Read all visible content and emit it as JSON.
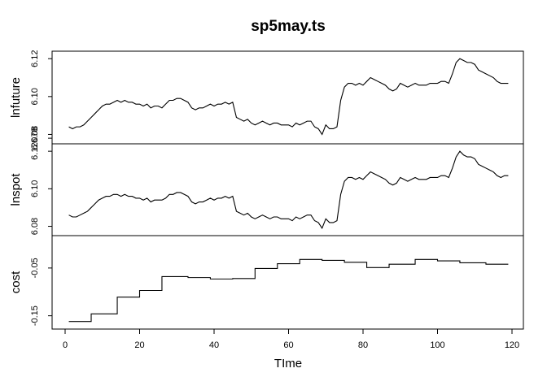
{
  "chart_data": {
    "type": "line",
    "title": "sp5may.ts",
    "xlabel": "TIme",
    "x_range": [
      1,
      119
    ],
    "xlim": [
      0,
      120
    ],
    "x_ticks": [
      0,
      20,
      40,
      60,
      80,
      100,
      120
    ],
    "panels": [
      {
        "name": "lnfuture",
        "ylabel": "lnfuture",
        "ylim": [
          6.077,
          6.122
        ],
        "y_ticks": [
          6.078,
          6.08,
          6.1,
          6.12
        ],
        "y_tick_labels": [
          "6.078",
          "6.08",
          "6.10",
          "6.12"
        ],
        "step": false,
        "x": [
          1,
          2,
          3,
          4,
          5,
          6,
          7,
          8,
          9,
          10,
          11,
          12,
          13,
          14,
          15,
          16,
          17,
          18,
          19,
          20,
          21,
          22,
          23,
          24,
          25,
          26,
          27,
          28,
          29,
          30,
          31,
          32,
          33,
          34,
          35,
          36,
          37,
          38,
          39,
          40,
          41,
          42,
          43,
          44,
          45,
          46,
          47,
          48,
          49,
          50,
          51,
          52,
          53,
          54,
          55,
          56,
          57,
          58,
          59,
          60,
          61,
          62,
          63,
          64,
          65,
          66,
          67,
          68,
          69,
          70,
          71,
          72,
          73,
          74,
          75,
          76,
          77,
          78,
          79,
          80,
          81,
          82,
          83,
          84,
          85,
          86,
          87,
          88,
          89,
          90,
          91,
          92,
          93,
          94,
          95,
          96,
          97,
          98,
          99,
          100,
          101,
          102,
          103,
          104,
          105,
          106,
          107,
          108,
          109,
          110,
          111,
          112,
          113,
          114,
          115,
          116,
          117,
          118,
          119
        ],
        "values": [
          6.084,
          6.083,
          6.084,
          6.084,
          6.085,
          6.087,
          6.089,
          6.091,
          6.093,
          6.095,
          6.096,
          6.096,
          6.097,
          6.098,
          6.097,
          6.098,
          6.097,
          6.097,
          6.096,
          6.096,
          6.095,
          6.096,
          6.094,
          6.095,
          6.095,
          6.094,
          6.096,
          6.098,
          6.098,
          6.099,
          6.099,
          6.098,
          6.097,
          6.094,
          6.093,
          6.094,
          6.094,
          6.095,
          6.096,
          6.095,
          6.096,
          6.096,
          6.097,
          6.096,
          6.097,
          6.089,
          6.088,
          6.087,
          6.088,
          6.086,
          6.085,
          6.086,
          6.087,
          6.086,
          6.085,
          6.086,
          6.086,
          6.085,
          6.085,
          6.085,
          6.084,
          6.086,
          6.085,
          6.086,
          6.087,
          6.087,
          6.084,
          6.083,
          6.08,
          6.085,
          6.083,
          6.083,
          6.084,
          6.098,
          6.105,
          6.107,
          6.107,
          6.106,
          6.107,
          6.106,
          6.108,
          6.11,
          6.109,
          6.108,
          6.107,
          6.106,
          6.104,
          6.103,
          6.104,
          6.107,
          6.106,
          6.105,
          6.106,
          6.107,
          6.106,
          6.106,
          6.106,
          6.107,
          6.107,
          6.107,
          6.108,
          6.108,
          6.107,
          6.112,
          6.118,
          6.12,
          6.119,
          6.118,
          6.118,
          6.117,
          6.114,
          6.113,
          6.112,
          6.111,
          6.11,
          6.108,
          6.107,
          6.107,
          6.107
        ]
      },
      {
        "name": "lnspot",
        "ylabel": "lnspot",
        "ylim": [
          6.077,
          6.122
        ],
        "y_ticks": [
          6.08,
          6.1,
          6.12
        ],
        "y_tick_labels": [
          "6.08",
          "6.10",
          "6.12"
        ],
        "step": false,
        "x": [
          1,
          2,
          3,
          4,
          5,
          6,
          7,
          8,
          9,
          10,
          11,
          12,
          13,
          14,
          15,
          16,
          17,
          18,
          19,
          20,
          21,
          22,
          23,
          24,
          25,
          26,
          27,
          28,
          29,
          30,
          31,
          32,
          33,
          34,
          35,
          36,
          37,
          38,
          39,
          40,
          41,
          42,
          43,
          44,
          45,
          46,
          47,
          48,
          49,
          50,
          51,
          52,
          53,
          54,
          55,
          56,
          57,
          58,
          59,
          60,
          61,
          62,
          63,
          64,
          65,
          66,
          67,
          68,
          69,
          70,
          71,
          72,
          73,
          74,
          75,
          76,
          77,
          78,
          79,
          80,
          81,
          82,
          83,
          84,
          85,
          86,
          87,
          88,
          89,
          90,
          91,
          92,
          93,
          94,
          95,
          96,
          97,
          98,
          99,
          100,
          101,
          102,
          103,
          104,
          105,
          106,
          107,
          108,
          109,
          110,
          111,
          112,
          113,
          114,
          115,
          116,
          117,
          118,
          119
        ],
        "values": [
          6.086,
          6.085,
          6.085,
          6.086,
          6.087,
          6.088,
          6.09,
          6.092,
          6.094,
          6.095,
          6.096,
          6.096,
          6.097,
          6.097,
          6.096,
          6.097,
          6.096,
          6.096,
          6.095,
          6.095,
          6.094,
          6.095,
          6.093,
          6.094,
          6.094,
          6.094,
          6.095,
          6.097,
          6.097,
          6.098,
          6.098,
          6.097,
          6.096,
          6.093,
          6.092,
          6.093,
          6.093,
          6.094,
          6.095,
          6.094,
          6.095,
          6.095,
          6.096,
          6.095,
          6.096,
          6.088,
          6.087,
          6.086,
          6.087,
          6.085,
          6.084,
          6.085,
          6.086,
          6.085,
          6.084,
          6.085,
          6.085,
          6.084,
          6.084,
          6.084,
          6.083,
          6.085,
          6.084,
          6.085,
          6.086,
          6.086,
          6.083,
          6.082,
          6.079,
          6.084,
          6.082,
          6.082,
          6.083,
          6.097,
          6.104,
          6.106,
          6.106,
          6.105,
          6.106,
          6.105,
          6.107,
          6.109,
          6.108,
          6.107,
          6.106,
          6.105,
          6.103,
          6.102,
          6.103,
          6.106,
          6.105,
          6.104,
          6.105,
          6.106,
          6.105,
          6.105,
          6.105,
          6.106,
          6.106,
          6.106,
          6.107,
          6.107,
          6.106,
          6.111,
          6.117,
          6.12,
          6.118,
          6.117,
          6.117,
          6.116,
          6.113,
          6.112,
          6.111,
          6.11,
          6.109,
          6.107,
          6.106,
          6.107,
          6.107
        ]
      },
      {
        "name": "cost",
        "ylabel": "cost",
        "ylim": [
          -0.17,
          0.01
        ],
        "y_ticks": [
          -0.15,
          -0.05
        ],
        "y_tick_labels": [
          "-0.15",
          "-0.05"
        ],
        "step": true,
        "x": [
          1,
          7,
          14,
          20,
          26,
          33,
          39,
          45,
          51,
          57,
          63,
          69,
          75,
          81,
          87,
          94,
          100,
          106,
          113,
          119
        ],
        "values": [
          -0.162,
          -0.146,
          -0.111,
          -0.097,
          -0.068,
          -0.07,
          -0.073,
          -0.072,
          -0.051,
          -0.041,
          -0.032,
          -0.034,
          -0.038,
          -0.049,
          -0.042,
          -0.032,
          -0.035,
          -0.039,
          -0.042,
          -0.042
        ]
      }
    ]
  }
}
